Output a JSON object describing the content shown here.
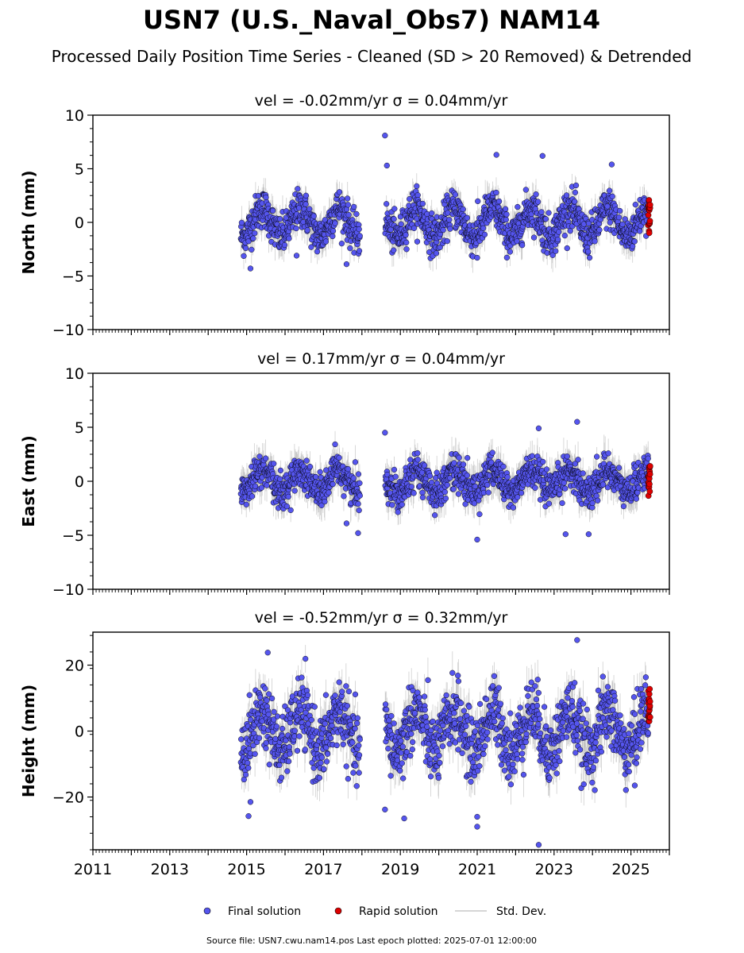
{
  "figure": {
    "title": "USN7 (U.S._Naval_Obs7) NAM14",
    "subtitle": "Processed Daily Position Time Series - Cleaned (SD > 20 Removed) & Detrended",
    "source_note": "Source file: USN7.cwu.nam14.pos  Last epoch plotted: 2025-07-01 12:00:00"
  },
  "legend": {
    "final_label": "Final solution",
    "rapid_label": "Rapid solution",
    "std_label": "Std. Dev."
  },
  "colors": {
    "final": "#5555ee",
    "rapid": "#dd0000",
    "std": "#b0b0b0",
    "marker_edge": "#000000"
  },
  "chart_data": [
    {
      "type": "scatter",
      "panel_title": "vel = -0.02mm/yr   σ = 0.04mm/yr",
      "ylabel": "North (mm)",
      "xlim": [
        2011,
        2026
      ],
      "ylim": [
        -10,
        10
      ],
      "yticks": [
        "−10",
        "−5",
        "0",
        "5",
        "10"
      ],
      "ytick_values": [
        -10,
        -5,
        0,
        5,
        10
      ],
      "data_span": [
        2014.85,
        2025.5
      ],
      "gap": [
        2017.95,
        2018.6
      ],
      "seasonal_amplitude": 1.3,
      "noise": 0.9,
      "std_error": 1.0,
      "outliers": [
        [
          2018.6,
          8.1
        ],
        [
          2018.65,
          5.3
        ],
        [
          2015.1,
          -4.3
        ],
        [
          2016.3,
          -3.1
        ],
        [
          2017.6,
          -3.9
        ],
        [
          2021.0,
          -3.3
        ],
        [
          2021.5,
          6.3
        ],
        [
          2022.7,
          6.2
        ],
        [
          2024.5,
          5.4
        ]
      ],
      "rapid": {
        "x": [
          2025.45,
          2025.5
        ],
        "y": [
          -1.0,
          2.3
        ]
      }
    },
    {
      "type": "scatter",
      "panel_title": "vel = 0.17mm/yr   σ = 0.04mm/yr",
      "ylabel": "East (mm)",
      "xlim": [
        2011,
        2026
      ],
      "ylim": [
        -10,
        10
      ],
      "yticks": [
        "−10",
        "−5",
        "0",
        "5",
        "10"
      ],
      "ytick_values": [
        -10,
        -5,
        0,
        5,
        10
      ],
      "data_span": [
        2014.85,
        2025.5
      ],
      "gap": [
        2017.95,
        2018.6
      ],
      "seasonal_amplitude": 1.0,
      "noise": 0.8,
      "std_error": 1.1,
      "outliers": [
        [
          2018.6,
          4.5
        ],
        [
          2017.9,
          -4.8
        ],
        [
          2017.6,
          -3.9
        ],
        [
          2021.0,
          -5.4
        ],
        [
          2023.3,
          -4.9
        ],
        [
          2023.9,
          -4.9
        ],
        [
          2023.6,
          5.5
        ],
        [
          2022.6,
          4.9
        ]
      ],
      "rapid": {
        "x": [
          2025.45,
          2025.5
        ],
        "y": [
          -1.6,
          1.5
        ]
      }
    },
    {
      "type": "scatter",
      "panel_title": "vel = -0.52mm/yr   σ = 0.32mm/yr",
      "ylabel": "Height (mm)",
      "xlim": [
        2011,
        2026
      ],
      "ylim": [
        -36,
        30
      ],
      "yticks": [
        "−20",
        "0",
        "20"
      ],
      "ytick_values": [
        -20,
        0,
        20
      ],
      "data_span": [
        2014.85,
        2025.5
      ],
      "gap": [
        2017.95,
        2018.6
      ],
      "seasonal_amplitude": 6.0,
      "noise": 5.0,
      "std_error": 4.5,
      "outliers": [
        [
          2015.05,
          -25.8
        ],
        [
          2015.1,
          -21.5
        ],
        [
          2018.6,
          -23.8
        ],
        [
          2019.1,
          -26.5
        ],
        [
          2021.0,
          -29.0
        ],
        [
          2021.0,
          -26.0
        ],
        [
          2022.6,
          -34.5
        ],
        [
          2023.6,
          27.6
        ],
        [
          2025.1,
          -16.5
        ],
        [
          2015.55,
          23.8
        ]
      ],
      "rapid": {
        "x": [
          2025.45,
          2025.5
        ],
        "y": [
          0.8,
          13.5
        ]
      }
    }
  ],
  "x_ticks": {
    "labels": [
      "2011",
      "2013",
      "2015",
      "2017",
      "2019",
      "2021",
      "2023",
      "2025"
    ],
    "values": [
      2011,
      2013,
      2015,
      2017,
      2019,
      2021,
      2023,
      2025
    ]
  }
}
